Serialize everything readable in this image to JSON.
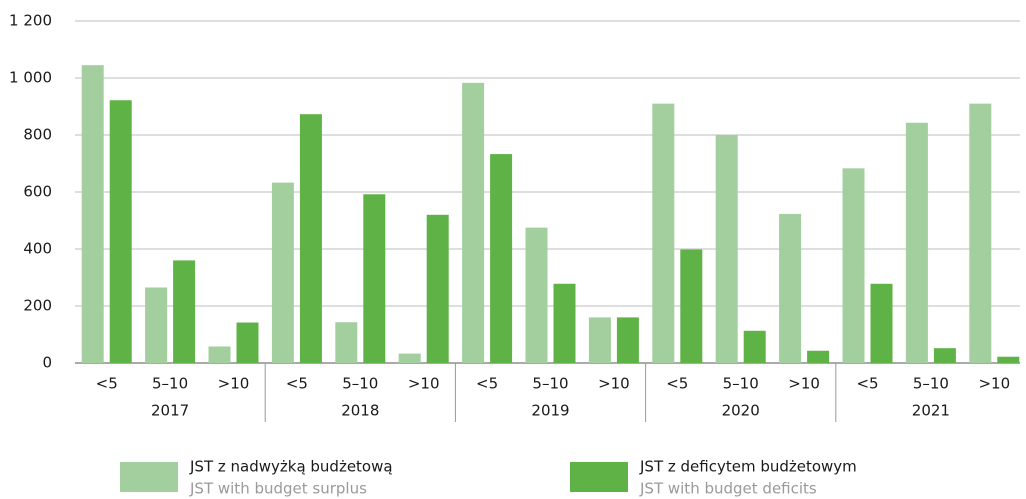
{
  "chart_data": {
    "type": "bar",
    "categories": [
      "<5",
      "5–10",
      ">10",
      "<5",
      "5–10",
      ">10",
      "<5",
      "5–10",
      ">10",
      "<5",
      "5–10",
      ">10",
      "<5",
      "5–10",
      ">10"
    ],
    "groups": [
      "2017",
      "2018",
      "2019",
      "2020",
      "2021"
    ],
    "series": [
      {
        "name": "JST z nadwyżką budżetową",
        "name_en": "JST with budget surplus",
        "color": "#a3cf9e",
        "values": [
          1045,
          265,
          58,
          633,
          143,
          33,
          983,
          475,
          160,
          910,
          800,
          523,
          683,
          843,
          910
        ]
      },
      {
        "name": "JST z deficytem budżetowym",
        "name_en": "JST with budget deficits",
        "color": "#5fb246",
        "values": [
          922,
          360,
          142,
          873,
          592,
          520,
          733,
          278,
          160,
          398,
          113,
          43,
          278,
          52,
          22
        ]
      }
    ],
    "ylim": [
      0,
      1200
    ],
    "yticks": [
      0,
      200,
      400,
      600,
      800,
      {
        "value": 1000,
        "label": "1 000"
      },
      {
        "value": 1200,
        "label": "1 200"
      }
    ],
    "grid": true
  }
}
